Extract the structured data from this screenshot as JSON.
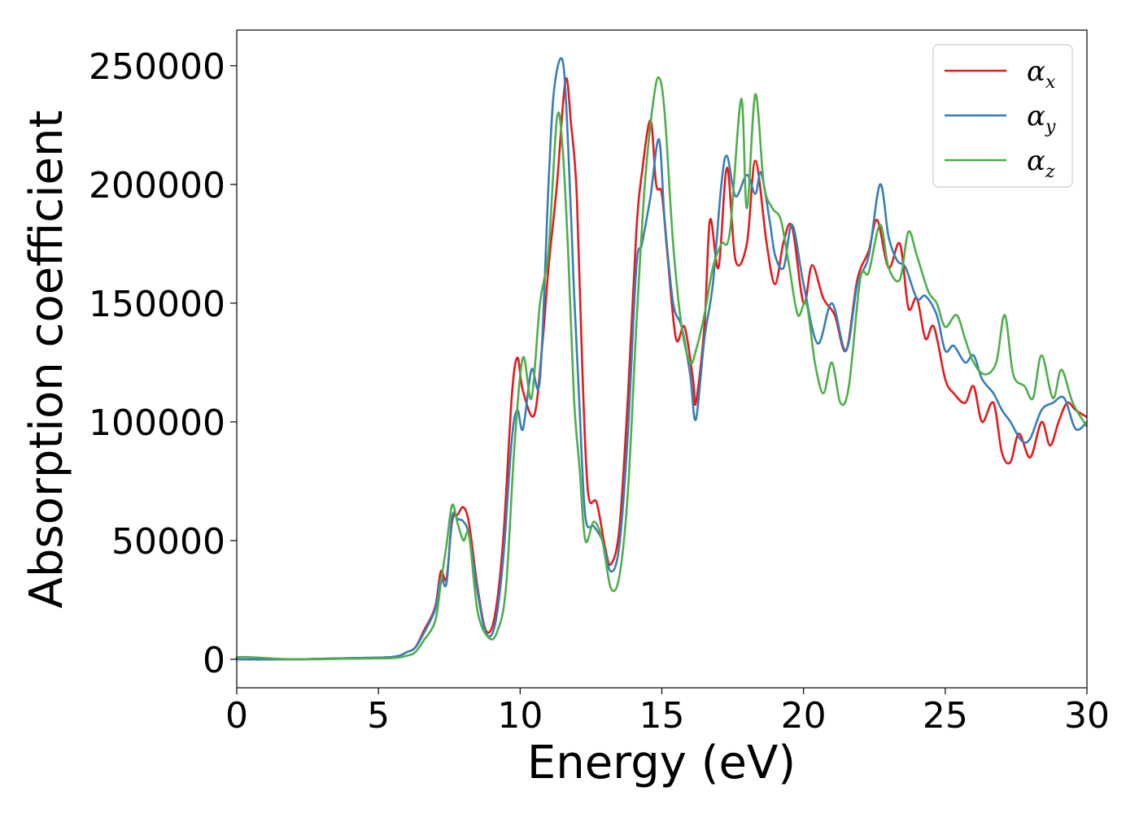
{
  "chart_data": {
    "type": "line",
    "xlabel": "Energy (eV)",
    "ylabel": "Absorption coefficient",
    "xlim": [
      0,
      30
    ],
    "ylim": [
      -12000,
      265000
    ],
    "xticks": [
      0,
      5,
      10,
      15,
      20,
      25,
      30
    ],
    "yticks": [
      0,
      50000,
      100000,
      150000,
      200000,
      250000
    ],
    "grid": false,
    "legend_position": "top-right",
    "series": [
      {
        "name": "αx",
        "base": "α",
        "sub": "x",
        "color": "#e41a1c",
        "x": [
          0,
          2,
          4,
          5.5,
          6.0,
          6.3,
          6.6,
          7.0,
          7.2,
          7.4,
          7.6,
          7.8,
          8.0,
          8.2,
          8.5,
          8.8,
          9.1,
          9.4,
          9.7,
          9.9,
          10.1,
          10.5,
          10.8,
          11.0,
          11.3,
          11.6,
          11.8,
          12.0,
          12.2,
          12.4,
          12.7,
          13.0,
          13.2,
          13.5,
          13.8,
          14.1,
          14.3,
          14.6,
          14.8,
          15.0,
          15.2,
          15.5,
          15.8,
          16.1,
          16.2,
          16.5,
          16.7,
          17.0,
          17.3,
          17.6,
          18.0,
          18.3,
          18.7,
          19.0,
          19.3,
          19.6,
          20.0,
          20.3,
          20.7,
          21.1,
          21.5,
          21.9,
          22.3,
          22.6,
          23.0,
          23.4,
          23.7,
          24.0,
          24.3,
          24.6,
          25.0,
          25.3,
          25.7,
          26.0,
          26.3,
          26.7,
          27.0,
          27.3,
          27.6,
          28.0,
          28.4,
          28.7,
          29.0,
          29.3,
          29.6,
          30.0
        ],
        "y": [
          0,
          0,
          500,
          1000,
          3000,
          5000,
          12000,
          22000,
          37000,
          34000,
          58000,
          61000,
          64000,
          57000,
          30000,
          12000,
          18000,
          50000,
          110000,
          127000,
          113000,
          103000,
          135000,
          165000,
          200000,
          244000,
          225000,
          195000,
          120000,
          70000,
          66000,
          47000,
          40000,
          55000,
          110000,
          180000,
          205000,
          227000,
          200000,
          196000,
          170000,
          135000,
          140000,
          118000,
          108000,
          140000,
          185000,
          165000,
          207000,
          168000,
          175000,
          210000,
          175000,
          158000,
          176000,
          182000,
          150000,
          166000,
          152000,
          145000,
          130000,
          160000,
          172000,
          185000,
          165000,
          175000,
          148000,
          152000,
          135000,
          140000,
          118000,
          112000,
          108000,
          115000,
          100000,
          108000,
          87000,
          83000,
          95000,
          85000,
          100000,
          90000,
          100000,
          108000,
          105000,
          102000
        ]
      },
      {
        "name": "αy",
        "base": "α",
        "sub": "y",
        "color": "#377eb8",
        "x": [
          0,
          2,
          4,
          5.5,
          6.0,
          6.3,
          6.6,
          7.0,
          7.2,
          7.4,
          7.6,
          7.8,
          8.0,
          8.2,
          8.5,
          8.8,
          9.1,
          9.4,
          9.7,
          9.9,
          10.1,
          10.4,
          10.7,
          11.0,
          11.2,
          11.5,
          11.7,
          11.9,
          12.1,
          12.3,
          12.6,
          12.9,
          13.2,
          13.5,
          13.8,
          14.1,
          14.3,
          14.6,
          14.9,
          15.1,
          15.4,
          15.7,
          16.0,
          16.2,
          16.5,
          16.8,
          17.1,
          17.3,
          17.6,
          18.0,
          18.3,
          18.5,
          18.8,
          19.0,
          19.3,
          19.6,
          20.0,
          20.5,
          21.0,
          21.5,
          21.9,
          22.3,
          22.7,
          23.0,
          23.3,
          23.6,
          24.0,
          24.3,
          24.7,
          25.0,
          25.3,
          25.7,
          26.0,
          26.3,
          26.7,
          27.0,
          27.3,
          27.7,
          28.0,
          28.4,
          28.8,
          29.2,
          29.6,
          30.0
        ],
        "y": [
          0,
          0,
          500,
          1000,
          3000,
          5000,
          11000,
          21000,
          34000,
          32000,
          60000,
          59000,
          58000,
          52000,
          28000,
          11000,
          14000,
          42000,
          92000,
          105000,
          97000,
          122000,
          118000,
          200000,
          240000,
          252000,
          215000,
          155000,
          105000,
          60000,
          56000,
          50000,
          37000,
          48000,
          95000,
          165000,
          175000,
          195000,
          219000,
          185000,
          150000,
          140000,
          120000,
          101000,
          135000,
          158000,
          200000,
          212000,
          195000,
          204000,
          196000,
          205000,
          185000,
          170000,
          165000,
          183000,
          158000,
          133000,
          150000,
          130000,
          158000,
          170000,
          200000,
          178000,
          168000,
          165000,
          152000,
          153000,
          145000,
          130000,
          132000,
          125000,
          128000,
          118000,
          112000,
          105000,
          100000,
          92000,
          93000,
          105000,
          108000,
          110000,
          97000,
          100000
        ]
      },
      {
        "name": "αz",
        "base": "α",
        "sub": "z",
        "color": "#4daf4a",
        "x": [
          0,
          0.2,
          2,
          4,
          5.5,
          6.0,
          6.3,
          6.6,
          7.0,
          7.2,
          7.4,
          7.6,
          7.8,
          8.0,
          8.2,
          8.5,
          8.9,
          9.2,
          9.5,
          9.8,
          10.1,
          10.4,
          10.7,
          11.0,
          11.3,
          11.5,
          11.7,
          11.9,
          12.1,
          12.3,
          12.6,
          12.9,
          13.2,
          13.5,
          13.8,
          14.1,
          14.4,
          14.7,
          14.9,
          15.1,
          15.4,
          15.7,
          16.0,
          16.2,
          16.5,
          16.8,
          17.1,
          17.4,
          17.8,
          18.0,
          18.3,
          18.6,
          18.9,
          19.2,
          19.5,
          19.8,
          20.1,
          20.4,
          20.7,
          21.0,
          21.3,
          21.6,
          22.0,
          22.3,
          22.7,
          23.0,
          23.4,
          23.7,
          24.0,
          24.4,
          24.7,
          25.0,
          25.4,
          25.7,
          26.0,
          26.4,
          26.8,
          27.1,
          27.4,
          27.8,
          28.1,
          28.4,
          28.8,
          29.1,
          29.5,
          30.0
        ],
        "y": [
          0,
          1000,
          0,
          300,
          500,
          1500,
          3000,
          8000,
          16000,
          32000,
          48000,
          65000,
          57000,
          50000,
          52000,
          20000,
          9000,
          12000,
          30000,
          90000,
          127000,
          110000,
          150000,
          172000,
          228000,
          215000,
          170000,
          110000,
          80000,
          50000,
          58000,
          50000,
          30000,
          35000,
          70000,
          140000,
          200000,
          235000,
          245000,
          230000,
          175000,
          140000,
          125000,
          130000,
          145000,
          165000,
          175000,
          180000,
          236000,
          190000,
          238000,
          200000,
          190000,
          185000,
          165000,
          145000,
          150000,
          125000,
          112000,
          125000,
          108000,
          115000,
          160000,
          163000,
          183000,
          165000,
          160000,
          180000,
          170000,
          155000,
          150000,
          140000,
          145000,
          135000,
          125000,
          120000,
          125000,
          145000,
          120000,
          115000,
          110000,
          128000,
          110000,
          122000,
          108000,
          98000
        ]
      }
    ]
  }
}
